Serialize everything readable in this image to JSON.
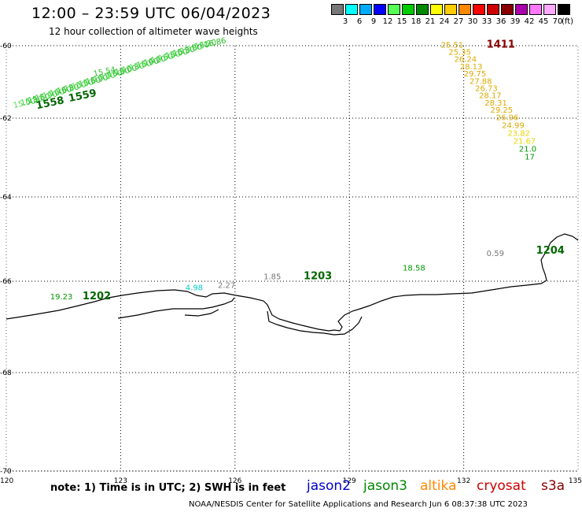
{
  "title": "12:00 – 23:59 UTC 06/04/2023",
  "subtitle": "12 hour collection of altimeter wave heights",
  "legend": {
    "colors": [
      "#777777",
      "#00ffff",
      "#00aaff",
      "#0000ff",
      "#55ff55",
      "#00cc00",
      "#008800",
      "#ffff00",
      "#ffcc00",
      "#ff8800",
      "#ff0000",
      "#cc0000",
      "#880000",
      "#aa00aa",
      "#ff77ff",
      "#ffaaff",
      "#000000"
    ],
    "labels": [
      "3",
      "6",
      "9",
      "12",
      "15",
      "18",
      "21",
      "24",
      "27",
      "30",
      "33",
      "36",
      "39",
      "42",
      "45",
      "70"
    ],
    "unit": "(ft)"
  },
  "map": {
    "lon_ticks": [
      "120",
      "123",
      "126",
      "129",
      "132",
      "135"
    ],
    "lat_ticks": [
      "-60",
      "-62",
      "-64",
      "-66",
      "-68",
      "-70"
    ]
  },
  "annotations": [
    {
      "text": "1411",
      "lon": 132.6,
      "lat": -60.05,
      "color": "#880000",
      "size": 13,
      "bold": true
    },
    {
      "text": "25.51",
      "lon": 131.4,
      "lat": -60.05,
      "color": "#ccaa00",
      "size": 10
    },
    {
      "text": "25.35",
      "lon": 131.6,
      "lat": -60.25,
      "color": "#ddaa00",
      "size": 10
    },
    {
      "text": "26.24",
      "lon": 131.75,
      "lat": -60.45,
      "color": "#ddaa00",
      "size": 10
    },
    {
      "text": "28.13",
      "lon": 131.9,
      "lat": -60.65,
      "color": "#ddaa00",
      "size": 10
    },
    {
      "text": "29.75",
      "lon": 132.0,
      "lat": -60.85,
      "color": "#ddaa00",
      "size": 10
    },
    {
      "text": "27.88",
      "lon": 132.15,
      "lat": -61.05,
      "color": "#ddaa00",
      "size": 10
    },
    {
      "text": "26.73",
      "lon": 132.3,
      "lat": -61.25,
      "color": "#ddaa00",
      "size": 10
    },
    {
      "text": "28.17",
      "lon": 132.4,
      "lat": -61.45,
      "color": "#ddaa00",
      "size": 10
    },
    {
      "text": "28.31",
      "lon": 132.55,
      "lat": -61.65,
      "color": "#ddaa00",
      "size": 10
    },
    {
      "text": "29.25",
      "lon": 132.7,
      "lat": -61.85,
      "color": "#ddaa00",
      "size": 10
    },
    {
      "text": "26.96",
      "lon": 132.85,
      "lat": -62.05,
      "color": "#ddaa00",
      "size": 10
    },
    {
      "text": "24.99",
      "lon": 133.0,
      "lat": -62.25,
      "color": "#ddaa00",
      "size": 10
    },
    {
      "text": "23.82",
      "lon": 133.15,
      "lat": -62.45,
      "color": "#e8d800",
      "size": 10
    },
    {
      "text": "21.67",
      "lon": 133.3,
      "lat": -62.65,
      "color": "#e8d800",
      "size": 10
    },
    {
      "text": "21.0",
      "lon": 133.45,
      "lat": -62.85,
      "color": "#009900",
      "size": 10
    },
    {
      "text": "17",
      "lon": 133.6,
      "lat": -63.05,
      "color": "#009900",
      "size": 10
    },
    {
      "text": "1204",
      "lon": 133.9,
      "lat": -65.35,
      "color": "#006600",
      "size": 13,
      "bold": true
    },
    {
      "text": "0.59",
      "lon": 132.6,
      "lat": -65.4,
      "color": "#777777",
      "size": 10
    },
    {
      "text": "18.58",
      "lon": 130.4,
      "lat": -65.75,
      "color": "#009900",
      "size": 10
    },
    {
      "text": "1203",
      "lon": 127.8,
      "lat": -65.95,
      "color": "#006600",
      "size": 13,
      "bold": true
    },
    {
      "text": "1.85",
      "lon": 126.75,
      "lat": -65.95,
      "color": "#777777",
      "size": 10
    },
    {
      "text": "2.27",
      "lon": 125.55,
      "lat": -66.15,
      "color": "#777777",
      "size": 10
    },
    {
      "text": "4.98",
      "lon": 124.7,
      "lat": -66.2,
      "color": "#00cccc",
      "size": 10
    },
    {
      "text": "1202",
      "lon": 122.0,
      "lat": -66.4,
      "color": "#006600",
      "size": 13,
      "bold": true
    },
    {
      "text": "19.23",
      "lon": 121.15,
      "lat": -66.4,
      "color": "#009900",
      "size": 10
    },
    {
      "text": "16.86",
      "lon": 125.2,
      "lat": -60.05,
      "color": "#22bb22",
      "size": 10
    },
    {
      "text": "1558",
      "lon": 120.8,
      "lat": -61.75,
      "color": "#006600",
      "size": 13,
      "bold": true
    },
    {
      "text": "1559",
      "lon": 121.65,
      "lat": -61.55,
      "color": "#006600",
      "size": 13,
      "bold": true
    },
    {
      "text": "15.54",
      "lon": 122.3,
      "lat": -60.85,
      "color": "#33bb33",
      "size": 10
    }
  ],
  "footer": {
    "note": "note:  1) Time is in UTC;  2) SWH is in feet",
    "satellites": [
      {
        "name": "jason2",
        "color": "#0000cc"
      },
      {
        "name": "jason3",
        "color": "#008800"
      },
      {
        "name": "altika",
        "color": "#ff8800"
      },
      {
        "name": "cryosat",
        "color": "#cc0000"
      },
      {
        "name": "s3a",
        "color": "#880000"
      }
    ],
    "credit": "NOAA/NESDIS Center for Satellite Applications and Research     Jun  6 08:37:38 UTC 2023"
  }
}
